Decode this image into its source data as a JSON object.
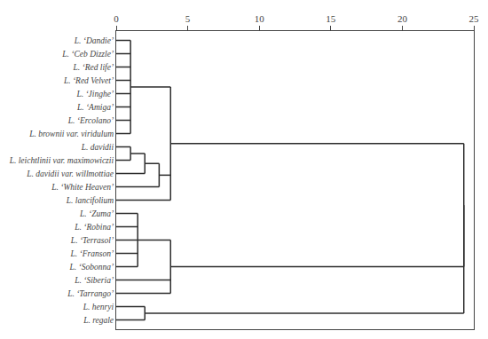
{
  "chart_data": {
    "type": "dendrogram",
    "tree": {
      "height": 24.3,
      "children": [
        {
          "height": 24.3,
          "children": [
            {
              "height": 3.8,
              "children": [
                {
                  "height": 1.0,
                  "children": [
                    "L. ‘Dandie’",
                    "L. ‘Ceb Dizzle’",
                    "L. ‘Red life’",
                    "L. ‘Red Velvet’",
                    "L. ‘Jinghe’",
                    "L. ‘Amiga’",
                    "L. ‘Ercolano’",
                    "L. brownii var. viridulum"
                  ]
                },
                {
                  "height": 3.0,
                  "children": [
                    {
                      "height": 2.0,
                      "children": [
                        {
                          "height": 1.0,
                          "children": [
                            "L. davidii",
                            "L. leichtlinii var. maximowiczii"
                          ]
                        },
                        "L. davidii var. willmottiae"
                      ]
                    },
                    "L. ‘White Heaven’"
                  ]
                },
                "L. lancifolium"
              ]
            },
            {
              "height": 3.8,
              "children": [
                {
                  "height": 1.5,
                  "children": [
                    "L. ‘Zuma’",
                    "L. ‘Robina’",
                    "L. ‘Terrasol’",
                    "L. ‘Franson’",
                    "L. ‘Sobonna’"
                  ]
                },
                "L. ‘Siberia’",
                "L. ‘Tarrango’"
              ]
            }
          ]
        },
        {
          "height": 2.0,
          "children": [
            "L. henryi",
            "L. regale"
          ]
        }
      ]
    },
    "color": "#2c2c2c",
    "xlim": [
      0,
      25
    ],
    "xticks": [
      0,
      5,
      10,
      15,
      20,
      25
    ],
    "grid": false
  }
}
